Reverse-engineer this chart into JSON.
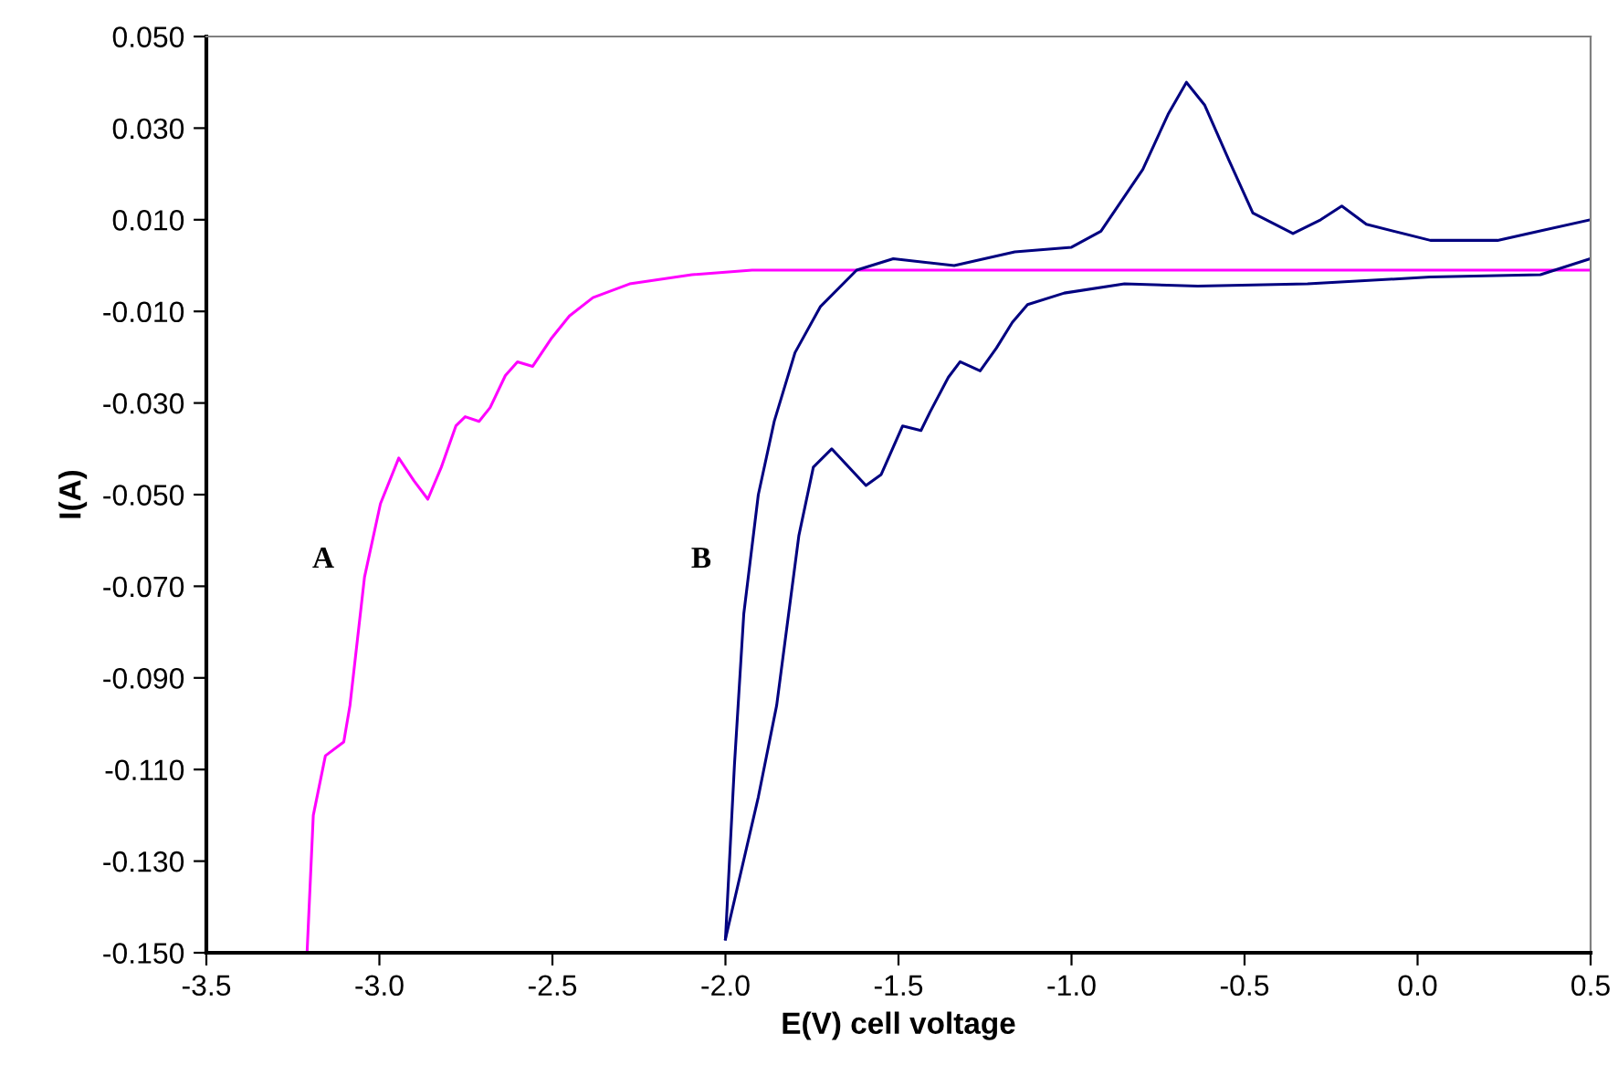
{
  "chart_data": {
    "type": "line",
    "xlabel": "E(V) cell voltage",
    "ylabel": "I(A)",
    "xlim": [
      -3.5,
      0.5
    ],
    "ylim": [
      -0.15,
      0.05
    ],
    "xticks": [
      -3.5,
      {
        "value": -3.0,
        "label": "-3.0"
      },
      -2.5,
      {
        "value": -2.0,
        "label": "-2.0"
      },
      -1.5,
      {
        "value": -1.0,
        "label": "-1.0"
      },
      -0.5,
      {
        "value": 0.0,
        "label": "0.0"
      },
      0.5
    ],
    "yticks": [
      {
        "value": 0.05,
        "label": "0.050"
      },
      {
        "value": 0.03,
        "label": "0.030"
      },
      {
        "value": 0.01,
        "label": "0.010"
      },
      {
        "value": -0.01,
        "label": "-0.010"
      },
      {
        "value": -0.03,
        "label": "-0.030"
      },
      {
        "value": -0.05,
        "label": "-0.050"
      },
      {
        "value": -0.07,
        "label": "-0.070"
      },
      {
        "value": -0.09,
        "label": "-0.090"
      },
      {
        "value": -0.11,
        "label": "-0.110"
      },
      {
        "value": -0.13,
        "label": "-0.130"
      },
      {
        "value": -0.15,
        "label": "-0.150"
      }
    ],
    "grid": false,
    "marker": "none",
    "line_style": "solid",
    "series": [
      {
        "color": "#ff00ff",
        "x": [
          -3.209,
          -3.191,
          -3.156,
          -3.103,
          -3.085,
          -3.043,
          -2.997,
          -2.944,
          -2.9,
          -2.86,
          -2.821,
          -2.779,
          -2.752,
          -2.712,
          -2.68,
          -2.636,
          -2.601,
          -2.557,
          -2.504,
          -2.451,
          -2.383,
          -2.277,
          -2.097,
          -1.923,
          -1.0,
          0.5
        ],
        "values": [
          -0.15,
          -0.12,
          -0.107,
          -0.104,
          -0.096,
          -0.068,
          -0.052,
          -0.042,
          -0.047,
          -0.051,
          -0.044,
          -0.035,
          -0.033,
          -0.034,
          -0.031,
          -0.024,
          -0.021,
          -0.022,
          -0.016,
          -0.011,
          -0.007,
          -0.004,
          -0.002,
          -0.001,
          -0.001,
          -0.001
        ]
      },
      {
        "color": "#000080",
        "x": [
          -2.0,
          -1.974,
          -1.947,
          -1.905,
          -1.859,
          -1.799,
          -1.726,
          -1.621,
          -1.515,
          -1.339,
          -1.164,
          -1.0,
          -0.915,
          -0.794,
          -0.721,
          -0.668,
          -0.615,
          -0.545,
          -0.476,
          -0.36,
          -0.28,
          -0.219,
          -0.148,
          0.037,
          0.231,
          0.5
        ],
        "values": [
          -0.147,
          -0.109,
          -0.076,
          -0.05,
          -0.034,
          -0.019,
          -0.009,
          -0.001,
          0.0015,
          0.0,
          0.003,
          0.004,
          0.0075,
          0.021,
          0.033,
          0.04,
          0.035,
          0.023,
          0.0115,
          0.007,
          0.01,
          0.013,
          0.009,
          0.0055,
          0.0055,
          0.01
        ]
      },
      {
        "color": "#000080",
        "x": [
          -2.0,
          -1.905,
          -1.852,
          -1.788,
          -1.746,
          -1.693,
          -1.594,
          -1.55,
          -1.488,
          -1.435,
          -1.409,
          -1.356,
          -1.322,
          -1.264,
          -1.217,
          -1.171,
          -1.127,
          -1.021,
          -0.847,
          -0.635,
          -0.318,
          0.037,
          0.355,
          0.5
        ],
        "values": [
          -0.147,
          -0.116,
          -0.096,
          -0.059,
          -0.044,
          -0.04,
          -0.048,
          -0.0456,
          -0.035,
          -0.036,
          -0.032,
          -0.0244,
          -0.021,
          -0.023,
          -0.018,
          -0.0124,
          -0.0085,
          -0.006,
          -0.004,
          -0.0045,
          -0.004,
          -0.0025,
          -0.002,
          0.0015
        ]
      }
    ],
    "annotations": [
      "A",
      "B"
    ]
  }
}
